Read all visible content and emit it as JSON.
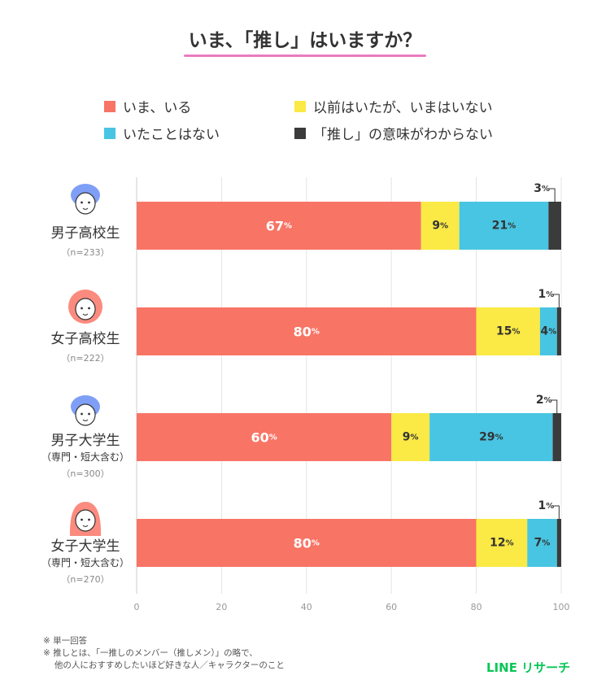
{
  "colors": {
    "ima_iru": "#f87465",
    "izen": "#fbe945",
    "nai": "#48c5e2",
    "imi": "#3b3b3b",
    "title_underline": "#e97cc1",
    "brand": "#06c755",
    "avatar_male": "#7f9ff7",
    "avatar_female": "#fb8b7f"
  },
  "chart_data": {
    "type": "bar",
    "orientation": "horizontal",
    "stacked": true,
    "title": "いま、「推し」はいますか？",
    "categories": [
      {
        "name": "男子高校生",
        "sub": "",
        "n": "（n=233）",
        "avatar": "male-short-hair-icon"
      },
      {
        "name": "女子高校生",
        "sub": "",
        "n": "（n=222）",
        "avatar": "female-bob-hair-icon"
      },
      {
        "name": "男子大学生",
        "sub": "（専門・短大含む）",
        "n": "（n=300）",
        "avatar": "male-round-hair-icon"
      },
      {
        "name": "女子大学生",
        "sub": "（専門・短大含む）",
        "n": "（n=270）",
        "avatar": "female-long-hair-icon"
      }
    ],
    "series": [
      {
        "name": "いま、いる",
        "color_key": "ima_iru",
        "values": [
          67,
          80,
          60,
          80
        ]
      },
      {
        "name": "以前はいたが、いまはいない",
        "color_key": "izen",
        "values": [
          9,
          15,
          9,
          12
        ]
      },
      {
        "name": "いたことはない",
        "color_key": "nai",
        "values": [
          21,
          4,
          29,
          7
        ]
      },
      {
        "name": "「推し」の意味がわからない",
        "color_key": "imi",
        "values": [
          3,
          1,
          2,
          1
        ]
      }
    ],
    "unit": "%",
    "xlim": [
      0,
      100
    ],
    "xticks": [
      0,
      20,
      40,
      60,
      80,
      100
    ],
    "grid": true,
    "legend_position": "top"
  },
  "notes": [
    "※ 単一回答",
    "※ 推しとは、「一推しのメンバー（推しメン）」の略で、",
    "　 他の人におすすめしたいほど好きな人／キャラクターのこと"
  ],
  "brand": "LINE リサーチ"
}
